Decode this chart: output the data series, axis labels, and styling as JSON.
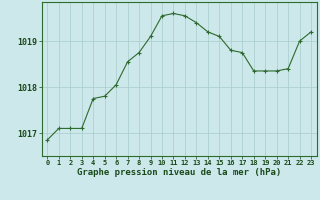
{
  "x": [
    0,
    1,
    2,
    3,
    4,
    5,
    6,
    7,
    8,
    9,
    10,
    11,
    12,
    13,
    14,
    15,
    16,
    17,
    18,
    19,
    20,
    21,
    22,
    23
  ],
  "y": [
    1016.85,
    1017.1,
    1017.1,
    1017.1,
    1017.75,
    1017.8,
    1018.05,
    1018.55,
    1018.75,
    1019.1,
    1019.55,
    1019.6,
    1019.55,
    1019.4,
    1019.2,
    1019.1,
    1018.8,
    1018.75,
    1018.35,
    1018.35,
    1018.35,
    1018.4,
    1019.0,
    1019.2
  ],
  "line_color": "#2d6a2d",
  "marker": "+",
  "marker_color": "#2d6a2d",
  "bg_color": "#cce8ea",
  "grid_color": "#a8cccc",
  "xlabel": "Graphe pression niveau de la mer (hPa)",
  "xlabel_color": "#1a4a1a",
  "tick_color": "#1a4a1a",
  "ylabel_values": [
    1017,
    1018,
    1019
  ],
  "xlim": [
    -0.5,
    23.5
  ],
  "ylim": [
    1016.5,
    1019.85
  ],
  "figsize": [
    3.2,
    2.0
  ],
  "dpi": 100
}
